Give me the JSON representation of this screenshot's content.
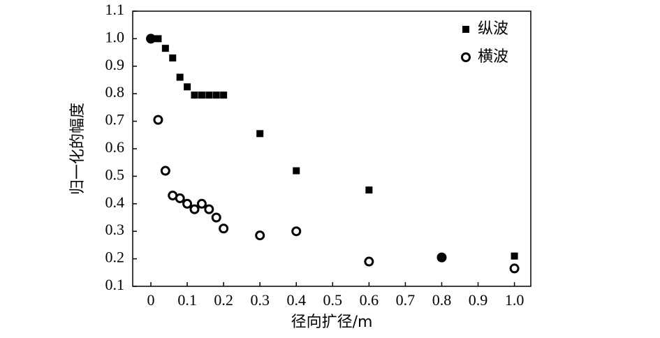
{
  "chart_data": {
    "type": "scatter",
    "x_label": "径向扩径/m",
    "y_label": "归一化的幅度",
    "xlim": [
      -0.05,
      1.045
    ],
    "ylim": [
      0.1,
      1.1
    ],
    "xticks": [
      0,
      0.1,
      0.2,
      0.3,
      0.4,
      0.5,
      0.6,
      0.7,
      0.8,
      0.9,
      {
        "value": 1,
        "label": "1.0"
      }
    ],
    "yticks": [
      0.1,
      0.2,
      0.3,
      0.4,
      0.5,
      0.6,
      0.7,
      0.8,
      0.9,
      {
        "value": 1,
        "label": "1.0"
      },
      1.1
    ],
    "legend": "upper right",
    "series": [
      {
        "name": "纵波",
        "color": "#000000",
        "marker": "square",
        "x": [
          0,
          0.02,
          0.04,
          0.06,
          0.08,
          0.1,
          0.12,
          0.14,
          0.16,
          0.18,
          0.2,
          0.3,
          0.4,
          0.6,
          0.8,
          1
        ],
        "values": [
          1.0,
          1.0,
          0.965,
          0.93,
          0.86,
          0.825,
          0.795,
          0.795,
          0.795,
          0.795,
          0.795,
          0.655,
          0.52,
          0.45,
          0.205,
          0.21
        ]
      },
      {
        "name": "横波",
        "color": "#000000",
        "marker": "circle",
        "x": [
          0,
          0.02,
          0.04,
          0.06,
          0.08,
          0.1,
          0.12,
          0.14,
          0.16,
          0.18,
          0.2,
          0.3,
          0.4,
          0.6,
          0.8,
          1
        ],
        "values": [
          1.0,
          0.705,
          0.52,
          0.43,
          0.42,
          0.4,
          0.38,
          0.4,
          0.38,
          0.35,
          0.31,
          0.285,
          0.3,
          0.19,
          0.205,
          0.165
        ]
      }
    ]
  }
}
